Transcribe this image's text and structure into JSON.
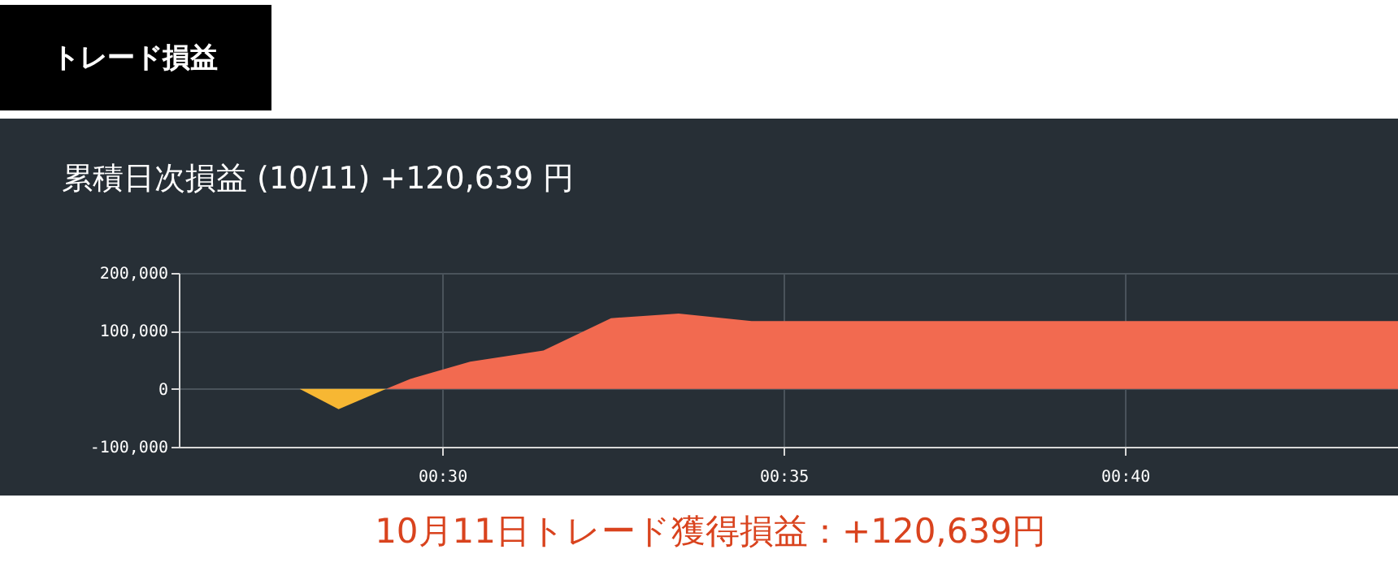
{
  "chart_data": {
    "type": "area",
    "title": "トレード損益",
    "subtitle": "累積日次損益 (10/11) +120,639 円",
    "annotations": [
      "10月11日トレード獲得損益：+120,639円"
    ],
    "series": [
      {
        "color": "#f7b733",
        "x": [
          0.4652,
          0.4747,
          0.4863
        ],
        "values": [
          0,
          -35000,
          0
        ]
      },
      {
        "color": "#f26a50",
        "x": [
          0.4863,
          0.4922,
          0.5068,
          0.5247,
          0.5412,
          0.5577,
          0.5755,
          0.7333
        ],
        "values": [
          0,
          17000,
          47000,
          66000,
          122000,
          130000,
          117000,
          117000
        ]
      }
    ],
    "xlim": [
      0.4357,
      0.7333
    ],
    "xticks": [
      {
        "value": 0.5,
        "label": "00:30"
      },
      {
        "value": 0.58333,
        "label": "00:35"
      },
      {
        "value": 0.66667,
        "label": "00:40"
      }
    ],
    "ylim": [
      -100000,
      200000
    ],
    "yticks": [
      {
        "value": -100000,
        "label": "-100,000"
      },
      {
        "value": 0,
        "label": "0"
      },
      {
        "value": 100000,
        "label": "100,000"
      },
      {
        "value": 200000,
        "label": "200,000"
      }
    ],
    "grid": true
  }
}
